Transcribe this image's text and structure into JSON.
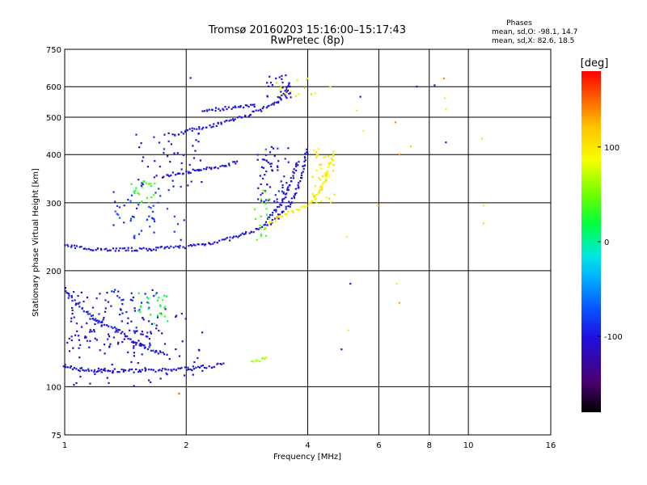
{
  "chart_data": {
    "type": "scatter",
    "title": "Tromsø 20160203 15:16:00–15:17:43",
    "subtitle": "RwPretec (8p)",
    "xlabel": "Frequency [MHz]",
    "ylabel": "Stationary phase Virtual Height [km]",
    "xscale": "log",
    "yscale": "log",
    "xlim": [
      1,
      16
    ],
    "ylim": [
      75,
      750
    ],
    "x_ticks": [
      1,
      2,
      4,
      6,
      8,
      10,
      16
    ],
    "x_tick_labels": [
      "1",
      "2",
      "4",
      "6",
      "8",
      "10",
      "16"
    ],
    "y_ticks": [
      75,
      100,
      200,
      300,
      400,
      500,
      600,
      750
    ],
    "y_tick_labels": [
      "75",
      "100",
      "200",
      "300",
      "400",
      "500",
      "600",
      "750"
    ],
    "grid": true,
    "stats": {
      "heading": "Phases",
      "line_o": "mean, sd,O: -98.1, 14.7",
      "line_x": "mean, sd,X:  82.6, 18.5"
    },
    "colorbar": {
      "label": "[deg]",
      "range": [
        -180,
        180
      ],
      "ticks": [
        100,
        0,
        -100
      ],
      "tick_labels": [
        "100",
        "0",
        "-100"
      ],
      "colormap": "rainbow"
    },
    "traces": [
      {
        "phase": -100,
        "points": [
          [
            1.0,
            112
          ],
          [
            1.1,
            111
          ],
          [
            1.2,
            110
          ],
          [
            1.35,
            110
          ],
          [
            1.5,
            110
          ],
          [
            1.7,
            110
          ],
          [
            1.9,
            111
          ],
          [
            2.1,
            112
          ],
          [
            2.3,
            113
          ],
          [
            2.5,
            115
          ]
        ]
      },
      {
        "phase": -100,
        "points": [
          [
            1.0,
            232
          ],
          [
            1.1,
            229
          ],
          [
            1.25,
            227
          ],
          [
            1.4,
            227
          ],
          [
            1.6,
            227
          ],
          [
            1.8,
            229
          ],
          [
            2.0,
            231
          ],
          [
            2.2,
            234
          ],
          [
            2.4,
            238
          ],
          [
            2.6,
            243
          ],
          [
            2.8,
            249
          ],
          [
            3.0,
            256
          ],
          [
            3.2,
            264
          ],
          [
            3.4,
            277
          ],
          [
            3.6,
            295
          ],
          [
            3.75,
            320
          ],
          [
            3.85,
            350
          ],
          [
            3.95,
            390
          ],
          [
            4.0,
            420
          ]
        ]
      },
      {
        "phase": -100,
        "points": [
          [
            1.75,
            350
          ],
          [
            1.9,
            358
          ],
          [
            2.1,
            363
          ],
          [
            2.3,
            368
          ],
          [
            2.5,
            375
          ],
          [
            2.7,
            385
          ]
        ]
      },
      {
        "phase": -100,
        "points": [
          [
            1.85,
            450
          ],
          [
            2.0,
            460
          ],
          [
            2.3,
            475
          ],
          [
            2.6,
            492
          ],
          [
            2.9,
            510
          ],
          [
            3.1,
            525
          ],
          [
            3.3,
            540
          ],
          [
            3.45,
            560
          ],
          [
            3.55,
            590
          ],
          [
            3.6,
            620
          ]
        ]
      },
      {
        "phase": -100,
        "points": [
          [
            2.2,
            520
          ],
          [
            2.5,
            527
          ],
          [
            2.8,
            532
          ],
          [
            3.0,
            537
          ]
        ]
      },
      {
        "phase": -100,
        "points": [
          [
            3.15,
            270
          ],
          [
            3.3,
            285
          ],
          [
            3.45,
            300
          ],
          [
            3.6,
            330
          ],
          [
            3.7,
            360
          ],
          [
            3.8,
            390
          ]
        ]
      },
      {
        "phase": 95,
        "points": [
          [
            3.2,
            265
          ],
          [
            3.4,
            275
          ],
          [
            3.6,
            282
          ],
          [
            3.8,
            289
          ],
          [
            4.0,
            296
          ],
          [
            4.2,
            310
          ],
          [
            4.35,
            330
          ],
          [
            4.45,
            355
          ],
          [
            4.55,
            380
          ],
          [
            4.65,
            410
          ]
        ]
      },
      {
        "phase": 60,
        "points": [
          [
            2.9,
            117
          ],
          [
            3.0,
            117
          ],
          [
            3.1,
            118
          ],
          [
            3.2,
            119
          ]
        ]
      },
      {
        "phase": -95,
        "points": [
          [
            1.0,
            180
          ],
          [
            1.05,
            168
          ],
          [
            1.1,
            160
          ],
          [
            1.2,
            148
          ],
          [
            1.3,
            143
          ],
          [
            1.4,
            137
          ],
          [
            1.5,
            130
          ],
          [
            1.6,
            126
          ],
          [
            1.7,
            123
          ],
          [
            1.8,
            121
          ]
        ]
      }
    ],
    "clusters": [
      {
        "phase": -100,
        "x": [
          1.0,
          1.7
        ],
        "y": [
          125,
          180
        ],
        "n": 110
      },
      {
        "phase": -110,
        "x": [
          1.0,
          2.2
        ],
        "y": [
          100,
          160
        ],
        "n": 90
      },
      {
        "phase": 20,
        "x": [
          1.5,
          1.8
        ],
        "y": [
          145,
          175
        ],
        "n": 26
      },
      {
        "phase": -80,
        "x": [
          1.3,
          2.0
        ],
        "y": [
          240,
          330
        ],
        "n": 50
      },
      {
        "phase": 30,
        "x": [
          1.45,
          1.7
        ],
        "y": [
          300,
          345
        ],
        "n": 22
      },
      {
        "phase": -100,
        "x": [
          1.5,
          2.2
        ],
        "y": [
          330,
          460
        ],
        "n": 45
      },
      {
        "phase": -100,
        "x": [
          3.0,
          3.6
        ],
        "y": [
          300,
          420
        ],
        "n": 60
      },
      {
        "phase": 40,
        "x": [
          2.95,
          3.25
        ],
        "y": [
          240,
          330
        ],
        "n": 20
      },
      {
        "phase": 80,
        "x": [
          3.35,
          4.2
        ],
        "y": [
          550,
          650
        ],
        "n": 16
      },
      {
        "phase": -110,
        "x": [
          3.15,
          3.65
        ],
        "y": [
          560,
          650
        ],
        "n": 25
      },
      {
        "phase": 100,
        "x": [
          4.1,
          4.7
        ],
        "y": [
          300,
          420
        ],
        "n": 40
      }
    ],
    "sparse": [
      [
        1.92,
        96,
        150
      ],
      [
        1.82,
        118,
        -110
      ],
      [
        2.05,
        632,
        -100
      ],
      [
        3.15,
        410,
        60
      ],
      [
        4.85,
        125,
        -100
      ],
      [
        5.1,
        185,
        -100
      ],
      [
        5.0,
        245,
        90
      ],
      [
        5.05,
        140,
        80
      ],
      [
        5.3,
        520,
        95
      ],
      [
        5.5,
        460,
        90
      ],
      [
        6.0,
        295,
        140
      ],
      [
        6.6,
        485,
        140
      ],
      [
        6.75,
        400,
        140
      ],
      [
        6.65,
        185,
        100
      ],
      [
        6.75,
        165,
        130
      ],
      [
        7.2,
        420,
        110
      ],
      [
        7.45,
        600,
        -100
      ],
      [
        8.25,
        605,
        -100
      ],
      [
        8.7,
        630,
        140
      ],
      [
        8.75,
        560,
        100
      ],
      [
        8.8,
        525,
        90
      ],
      [
        8.8,
        430,
        -110
      ],
      [
        10.8,
        440,
        100
      ],
      [
        10.9,
        295,
        80
      ],
      [
        10.9,
        265,
        110
      ],
      [
        5.4,
        565,
        -100
      ],
      [
        4.55,
        600,
        90
      ]
    ]
  }
}
